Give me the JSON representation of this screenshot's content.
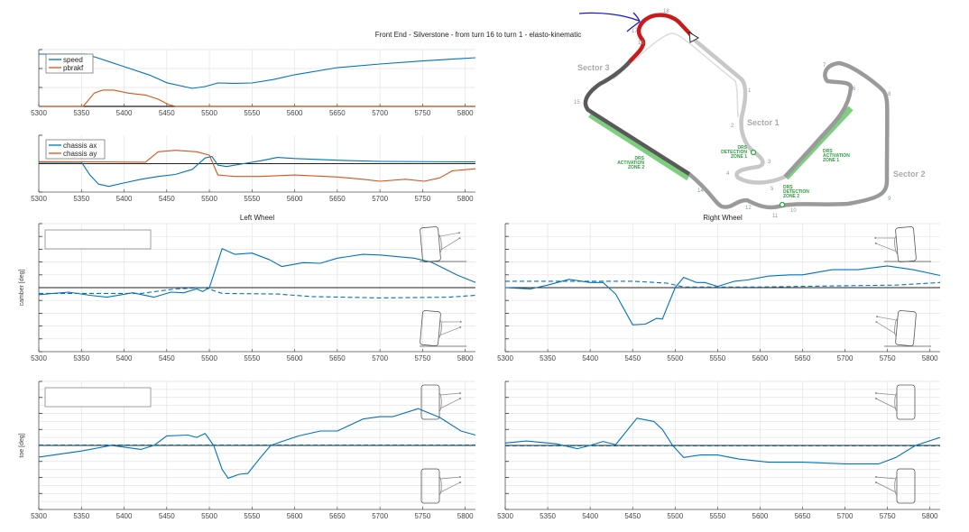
{
  "title": "Front End - Silverstone - from turn 16 to turn 1 - elasto-kinematic",
  "colors": {
    "blue": "#0072BD",
    "orange": "#D95319",
    "drs_green": "#7ccf7f",
    "sector_red": "#c81c1c",
    "annotation_blue": "#1a1acc"
  },
  "track_map": {
    "sectors": [
      "Sector 1",
      "Sector 2",
      "Sector 3"
    ],
    "turns": [
      "1",
      "2",
      "3",
      "4",
      "5",
      "6",
      "7",
      "8",
      "9",
      "10",
      "11",
      "12",
      "14",
      "15",
      "16",
      "17",
      "18"
    ],
    "drs_detection_1": [
      "DRS",
      "DETECTION",
      "ZONE 1"
    ],
    "drs_detection_2": [
      "DRS",
      "DETECTION",
      "ZONE 2"
    ],
    "drs_activation_1": [
      "DRS",
      "ACTIVATION",
      "ZONE 1"
    ],
    "drs_activation_2": [
      "DRS",
      "ACTIVATION",
      "ZONE 2"
    ],
    "highlighted_segment": "turn 16 to turn 1"
  },
  "chart_data": [
    {
      "id": "speed",
      "type": "line",
      "title": "",
      "xlabel": "",
      "ylabel": "",
      "xlim": [
        5300,
        5812
      ],
      "ylim": [
        0,
        3
      ],
      "xticks": [
        5300,
        5350,
        5400,
        5450,
        5500,
        5550,
        5600,
        5650,
        5700,
        5750,
        5800
      ],
      "yticks": [
        0,
        1,
        2,
        3
      ],
      "grid": true,
      "legend": "top-left",
      "series": [
        {
          "name": "speed",
          "color": "#0072BD",
          "dash": false,
          "points": [
            [
              5300,
              2.76
            ],
            [
              5355,
              2.76
            ],
            [
              5370,
              2.55
            ],
            [
              5400,
              2.1
            ],
            [
              5430,
              1.65
            ],
            [
              5450,
              1.25
            ],
            [
              5480,
              0.95
            ],
            [
              5495,
              1.05
            ],
            [
              5510,
              1.24
            ],
            [
              5530,
              1.22
            ],
            [
              5550,
              1.24
            ],
            [
              5575,
              1.42
            ],
            [
              5600,
              1.67
            ],
            [
              5650,
              2.05
            ],
            [
              5700,
              2.24
            ],
            [
              5750,
              2.4
            ],
            [
              5812,
              2.57
            ]
          ]
        },
        {
          "name": "pbrakf",
          "color": "#D95319",
          "dash": false,
          "points": [
            [
              5300,
              0
            ],
            [
              5352,
              0
            ],
            [
              5365,
              0.7
            ],
            [
              5375,
              0.86
            ],
            [
              5388,
              0.86
            ],
            [
              5405,
              0.7
            ],
            [
              5425,
              0.6
            ],
            [
              5440,
              0.38
            ],
            [
              5452,
              0.1
            ],
            [
              5460,
              0
            ],
            [
              5812,
              0
            ]
          ]
        }
      ]
    },
    {
      "id": "accel",
      "type": "line",
      "title": "",
      "xlabel": "",
      "ylabel": "",
      "xlim": [
        5300,
        5812
      ],
      "ylim": [
        -1,
        1
      ],
      "xticks": [
        5300,
        5350,
        5400,
        5450,
        5500,
        5550,
        5600,
        5650,
        5700,
        5750,
        5800
      ],
      "yticks": [
        -1,
        0,
        1
      ],
      "grid": true,
      "legend": "top-left",
      "series": [
        {
          "name": "chassis ax",
          "color": "#0072BD",
          "dash": false,
          "points": [
            [
              5300,
              0.05
            ],
            [
              5350,
              0.05
            ],
            [
              5360,
              -0.4
            ],
            [
              5370,
              -0.72
            ],
            [
              5382,
              -0.8
            ],
            [
              5400,
              -0.68
            ],
            [
              5420,
              -0.55
            ],
            [
              5440,
              -0.45
            ],
            [
              5460,
              -0.38
            ],
            [
              5480,
              -0.2
            ],
            [
              5495,
              0.2
            ],
            [
              5503,
              0.25
            ],
            [
              5510,
              -0.05
            ],
            [
              5520,
              -0.1
            ],
            [
              5540,
              0
            ],
            [
              5560,
              0.1
            ],
            [
              5580,
              0.22
            ],
            [
              5600,
              0.18
            ],
            [
              5650,
              0.12
            ],
            [
              5700,
              0.08
            ],
            [
              5812,
              0.06
            ]
          ]
        },
        {
          "name": "chassis ay",
          "color": "#D95319",
          "dash": false,
          "points": [
            [
              5300,
              0.07
            ],
            [
              5425,
              0.05
            ],
            [
              5440,
              0.42
            ],
            [
              5460,
              0.47
            ],
            [
              5485,
              0.42
            ],
            [
              5500,
              0.3
            ],
            [
              5510,
              -0.4
            ],
            [
              5530,
              -0.45
            ],
            [
              5560,
              -0.45
            ],
            [
              5600,
              -0.4
            ],
            [
              5650,
              -0.47
            ],
            [
              5680,
              -0.55
            ],
            [
              5700,
              -0.62
            ],
            [
              5730,
              -0.55
            ],
            [
              5752,
              -0.62
            ],
            [
              5770,
              -0.5
            ],
            [
              5785,
              -0.25
            ],
            [
              5812,
              -0.18
            ]
          ]
        }
      ]
    },
    {
      "id": "left-camber",
      "type": "line",
      "title": "Left Wheel",
      "xlabel": "",
      "ylabel": "camber [deg]",
      "xlim": [
        5300,
        5812
      ],
      "ylim": [
        -5,
        5
      ],
      "xticks": [
        5300,
        5350,
        5400,
        5450,
        5500,
        5550,
        5600,
        5650,
        5700,
        5750,
        5800
      ],
      "yticks": [
        -5,
        -4,
        -3,
        -2,
        -1,
        0,
        1,
        2,
        3,
        4,
        5
      ],
      "grid": true,
      "legend": "top-left",
      "series": [
        {
          "color": "#0072BD",
          "dash": false,
          "points": [
            [
              5300,
              -0.55
            ],
            [
              5335,
              -0.35
            ],
            [
              5360,
              -0.6
            ],
            [
              5380,
              -0.75
            ],
            [
              5410,
              -0.4
            ],
            [
              5435,
              -0.75
            ],
            [
              5455,
              -0.35
            ],
            [
              5470,
              -0.4
            ],
            [
              5485,
              -0.1
            ],
            [
              5492,
              -0.3
            ],
            [
              5500,
              0
            ],
            [
              5515,
              3.05
            ],
            [
              5530,
              2.6
            ],
            [
              5550,
              2.7
            ],
            [
              5570,
              2.2
            ],
            [
              5585,
              1.65
            ],
            [
              5610,
              1.95
            ],
            [
              5630,
              1.9
            ],
            [
              5650,
              2.3
            ],
            [
              5680,
              2.6
            ],
            [
              5700,
              2.55
            ],
            [
              5740,
              2.3
            ],
            [
              5760,
              2.0
            ],
            [
              5790,
              1.0
            ],
            [
              5812,
              0.4
            ]
          ]
        },
        {
          "color": "#0072BD",
          "dash": true,
          "points": [
            [
              5300,
              -0.45
            ],
            [
              5420,
              -0.45
            ],
            [
              5460,
              -0.1
            ],
            [
              5495,
              0
            ],
            [
              5515,
              -0.45
            ],
            [
              5580,
              -0.5
            ],
            [
              5620,
              -0.7
            ],
            [
              5700,
              -0.8
            ],
            [
              5780,
              -0.75
            ],
            [
              5812,
              -0.6
            ]
          ]
        }
      ]
    },
    {
      "id": "left-toe",
      "type": "line",
      "title": "",
      "xlabel": "",
      "ylabel": "toe [deg]",
      "xlim": [
        5300,
        5812
      ],
      "ylim": [
        -8,
        8
      ],
      "xticks": [
        5300,
        5350,
        5400,
        5450,
        5500,
        5550,
        5600,
        5650,
        5700,
        5750,
        5800
      ],
      "yticks": [
        -8,
        -6,
        -4,
        -2,
        0,
        2,
        4,
        6,
        8
      ],
      "grid": true,
      "legend": "top-left",
      "series": [
        {
          "color": "#0072BD",
          "dash": false,
          "points": [
            [
              5300,
              -1.45
            ],
            [
              5350,
              -0.7
            ],
            [
              5385,
              0
            ],
            [
              5420,
              -0.5
            ],
            [
              5435,
              0
            ],
            [
              5450,
              1.2
            ],
            [
              5475,
              1.3
            ],
            [
              5485,
              1.0
            ],
            [
              5495,
              1.5
            ],
            [
              5505,
              0
            ],
            [
              5515,
              -3.0
            ],
            [
              5522,
              -4.1
            ],
            [
              5535,
              -3.6
            ],
            [
              5545,
              -3.5
            ],
            [
              5560,
              -1.5
            ],
            [
              5572,
              0
            ],
            [
              5585,
              0.5
            ],
            [
              5605,
              1.2
            ],
            [
              5630,
              1.8
            ],
            [
              5650,
              1.8
            ],
            [
              5680,
              3.3
            ],
            [
              5700,
              3.6
            ],
            [
              5715,
              3.6
            ],
            [
              5745,
              4.6
            ],
            [
              5770,
              3.5
            ],
            [
              5795,
              1.8
            ],
            [
              5812,
              1.3
            ]
          ]
        },
        {
          "color": "#0072BD",
          "dash": true,
          "points": [
            [
              5300,
              0.05
            ],
            [
              5812,
              0.05
            ]
          ]
        }
      ]
    },
    {
      "id": "right-camber",
      "type": "line",
      "title": "Right Wheel",
      "xlabel": "",
      "ylabel": "",
      "xlim": [
        5300,
        5812
      ],
      "ylim": [
        -5,
        5
      ],
      "xticks": [
        5300,
        5350,
        5400,
        5450,
        5500,
        5550,
        5600,
        5650,
        5700,
        5750,
        5800
      ],
      "yticks": [
        -5,
        -4,
        -3,
        -2,
        -1,
        0,
        1,
        2,
        3,
        4,
        5
      ],
      "grid": true,
      "legend": "none",
      "series": [
        {
          "color": "#0072BD",
          "dash": false,
          "points": [
            [
              5300,
              0
            ],
            [
              5330,
              -0.1
            ],
            [
              5350,
              0.2
            ],
            [
              5375,
              0.65
            ],
            [
              5400,
              0.4
            ],
            [
              5415,
              0.4
            ],
            [
              5430,
              -0.5
            ],
            [
              5450,
              -2.9
            ],
            [
              5465,
              -2.85
            ],
            [
              5478,
              -2.4
            ],
            [
              5485,
              -2.45
            ],
            [
              5500,
              0
            ],
            [
              5510,
              0.8
            ],
            [
              5525,
              0.4
            ],
            [
              5535,
              0.4
            ],
            [
              5550,
              0.1
            ],
            [
              5570,
              0.5
            ],
            [
              5585,
              0.6
            ],
            [
              5610,
              0.9
            ],
            [
              5635,
              1.0
            ],
            [
              5650,
              1.0
            ],
            [
              5685,
              1.4
            ],
            [
              5715,
              1.4
            ],
            [
              5750,
              1.7
            ],
            [
              5780,
              1.4
            ],
            [
              5812,
              0.95
            ]
          ]
        },
        {
          "color": "#0072BD",
          "dash": true,
          "points": [
            [
              5300,
              0.5
            ],
            [
              5450,
              0.5
            ],
            [
              5490,
              0.35
            ],
            [
              5510,
              0.05
            ],
            [
              5600,
              0.05
            ],
            [
              5700,
              0.15
            ],
            [
              5760,
              0.2
            ],
            [
              5812,
              0.4
            ]
          ]
        }
      ]
    },
    {
      "id": "right-toe",
      "type": "line",
      "title": "",
      "xlabel": "",
      "ylabel": "",
      "xlim": [
        5300,
        5812
      ],
      "ylim": [
        -8,
        8
      ],
      "xticks": [
        5300,
        5350,
        5400,
        5450,
        5500,
        5550,
        5600,
        5650,
        5700,
        5750,
        5800
      ],
      "yticks": [
        -8,
        -6,
        -4,
        -2,
        0,
        2,
        4,
        6,
        8
      ],
      "grid": true,
      "legend": "none",
      "series": [
        {
          "color": "#0072BD",
          "dash": false,
          "points": [
            [
              5300,
              0.3
            ],
            [
              5325,
              0.55
            ],
            [
              5360,
              0.2
            ],
            [
              5385,
              -0.4
            ],
            [
              5400,
              0
            ],
            [
              5415,
              0.5
            ],
            [
              5430,
              0.1
            ],
            [
              5455,
              3.4
            ],
            [
              5475,
              3.0
            ],
            [
              5485,
              2.0
            ],
            [
              5497,
              0
            ],
            [
              5510,
              -1.5
            ],
            [
              5530,
              -1.2
            ],
            [
              5550,
              -1.2
            ],
            [
              5575,
              -1.7
            ],
            [
              5610,
              -2.1
            ],
            [
              5650,
              -2.1
            ],
            [
              5700,
              -2.3
            ],
            [
              5740,
              -2.3
            ],
            [
              5760,
              -1.5
            ],
            [
              5783,
              0
            ],
            [
              5812,
              1.0
            ]
          ]
        },
        {
          "color": "#0072BD",
          "dash": true,
          "points": [
            [
              5300,
              -0.05
            ],
            [
              5812,
              -0.05
            ]
          ]
        }
      ]
    }
  ]
}
